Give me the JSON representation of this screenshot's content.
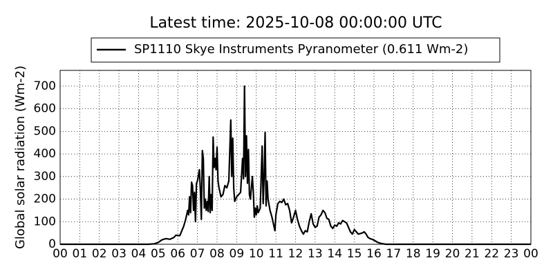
{
  "chart_data": {
    "type": "line",
    "title": "Latest time: 2025-10-08 00:00:00 UTC",
    "y_label": "Global solar radiation (Wm-2)",
    "legend": "upper center",
    "grid": true,
    "xlim": [
      0,
      24
    ],
    "ylim": [
      0,
      770
    ],
    "xticks": [
      {
        "value": 0,
        "label": "00"
      },
      {
        "value": 1,
        "label": "01"
      },
      {
        "value": 2,
        "label": "02"
      },
      {
        "value": 3,
        "label": "03"
      },
      {
        "value": 4,
        "label": "04"
      },
      {
        "value": 5,
        "label": "05"
      },
      {
        "value": 6,
        "label": "06"
      },
      {
        "value": 7,
        "label": "07"
      },
      {
        "value": 8,
        "label": "08"
      },
      {
        "value": 9,
        "label": "09"
      },
      10,
      11,
      12,
      13,
      14,
      15,
      16,
      17,
      18,
      19,
      20,
      21,
      22,
      23,
      {
        "value": 24,
        "label": "00"
      }
    ],
    "yticks": [
      0,
      100,
      200,
      300,
      400,
      500,
      600,
      700
    ],
    "x": [
      0,
      4.5,
      4.8,
      5.0,
      5.2,
      5.4,
      5.6,
      5.8,
      5.9,
      6.1,
      6.3,
      6.4,
      6.5,
      6.55,
      6.6,
      6.65,
      6.7,
      6.75,
      6.8,
      6.85,
      6.9,
      6.95,
      7.0,
      7.1,
      7.15,
      7.2,
      7.25,
      7.3,
      7.35,
      7.4,
      7.45,
      7.5,
      7.55,
      7.6,
      7.65,
      7.7,
      7.75,
      7.8,
      7.85,
      7.9,
      7.95,
      8.0,
      8.05,
      8.1,
      8.2,
      8.3,
      8.4,
      8.5,
      8.6,
      8.7,
      8.75,
      8.8,
      8.85,
      8.9,
      9.0,
      9.1,
      9.2,
      9.3,
      9.35,
      9.4,
      9.45,
      9.5,
      9.55,
      9.6,
      9.65,
      9.7,
      9.8,
      9.85,
      9.9,
      9.95,
      10.0,
      10.05,
      10.1,
      10.2,
      10.3,
      10.35,
      10.4,
      10.45,
      10.5,
      10.55,
      10.6,
      10.7,
      10.8,
      10.9,
      10.95,
      11.0,
      11.1,
      11.2,
      11.3,
      11.4,
      11.5,
      11.6,
      11.7,
      11.8,
      11.9,
      12.0,
      12.1,
      12.2,
      12.3,
      12.4,
      12.5,
      12.6,
      12.7,
      12.8,
      12.9,
      13.0,
      13.1,
      13.2,
      13.3,
      13.4,
      13.5,
      13.6,
      13.7,
      13.8,
      13.9,
      14.0,
      14.1,
      14.2,
      14.3,
      14.4,
      14.5,
      14.6,
      14.7,
      14.8,
      14.9,
      15.0,
      15.1,
      15.2,
      15.4,
      15.5,
      15.6,
      15.7,
      15.8,
      15.9,
      16.0,
      16.2,
      16.4,
      16.6,
      24
    ],
    "series": [
      {
        "name": "SP1110 Skye Instruments Pyranometer (0.611 Wm-2)",
        "color": "#000000",
        "values": [
          0,
          0,
          2,
          8,
          20,
          25,
          22,
          30,
          40,
          38,
          80,
          110,
          150,
          130,
          210,
          140,
          275,
          260,
          150,
          230,
          100,
          270,
          280,
          330,
          240,
          110,
          415,
          380,
          160,
          200,
          150,
          190,
          145,
          300,
          140,
          220,
          150,
          475,
          340,
          380,
          330,
          430,
          280,
          250,
          210,
          220,
          260,
          250,
          280,
          550,
          300,
          470,
          250,
          190,
          210,
          220,
          230,
          380,
          290,
          700,
          300,
          480,
          270,
          420,
          220,
          200,
          300,
          230,
          120,
          160,
          130,
          170,
          140,
          160,
          435,
          180,
          300,
          495,
          170,
          280,
          200,
          150,
          120,
          80,
          60,
          130,
          180,
          190,
          185,
          200,
          175,
          180,
          150,
          95,
          120,
          150,
          110,
          80,
          60,
          45,
          60,
          55,
          100,
          135,
          90,
          75,
          80,
          120,
          130,
          150,
          140,
          115,
          110,
          80,
          70,
          85,
          80,
          95,
          90,
          105,
          100,
          95,
          75,
          55,
          45,
          65,
          55,
          45,
          50,
          55,
          45,
          30,
          25,
          22,
          18,
          8,
          3,
          0,
          0
        ]
      }
    ]
  }
}
